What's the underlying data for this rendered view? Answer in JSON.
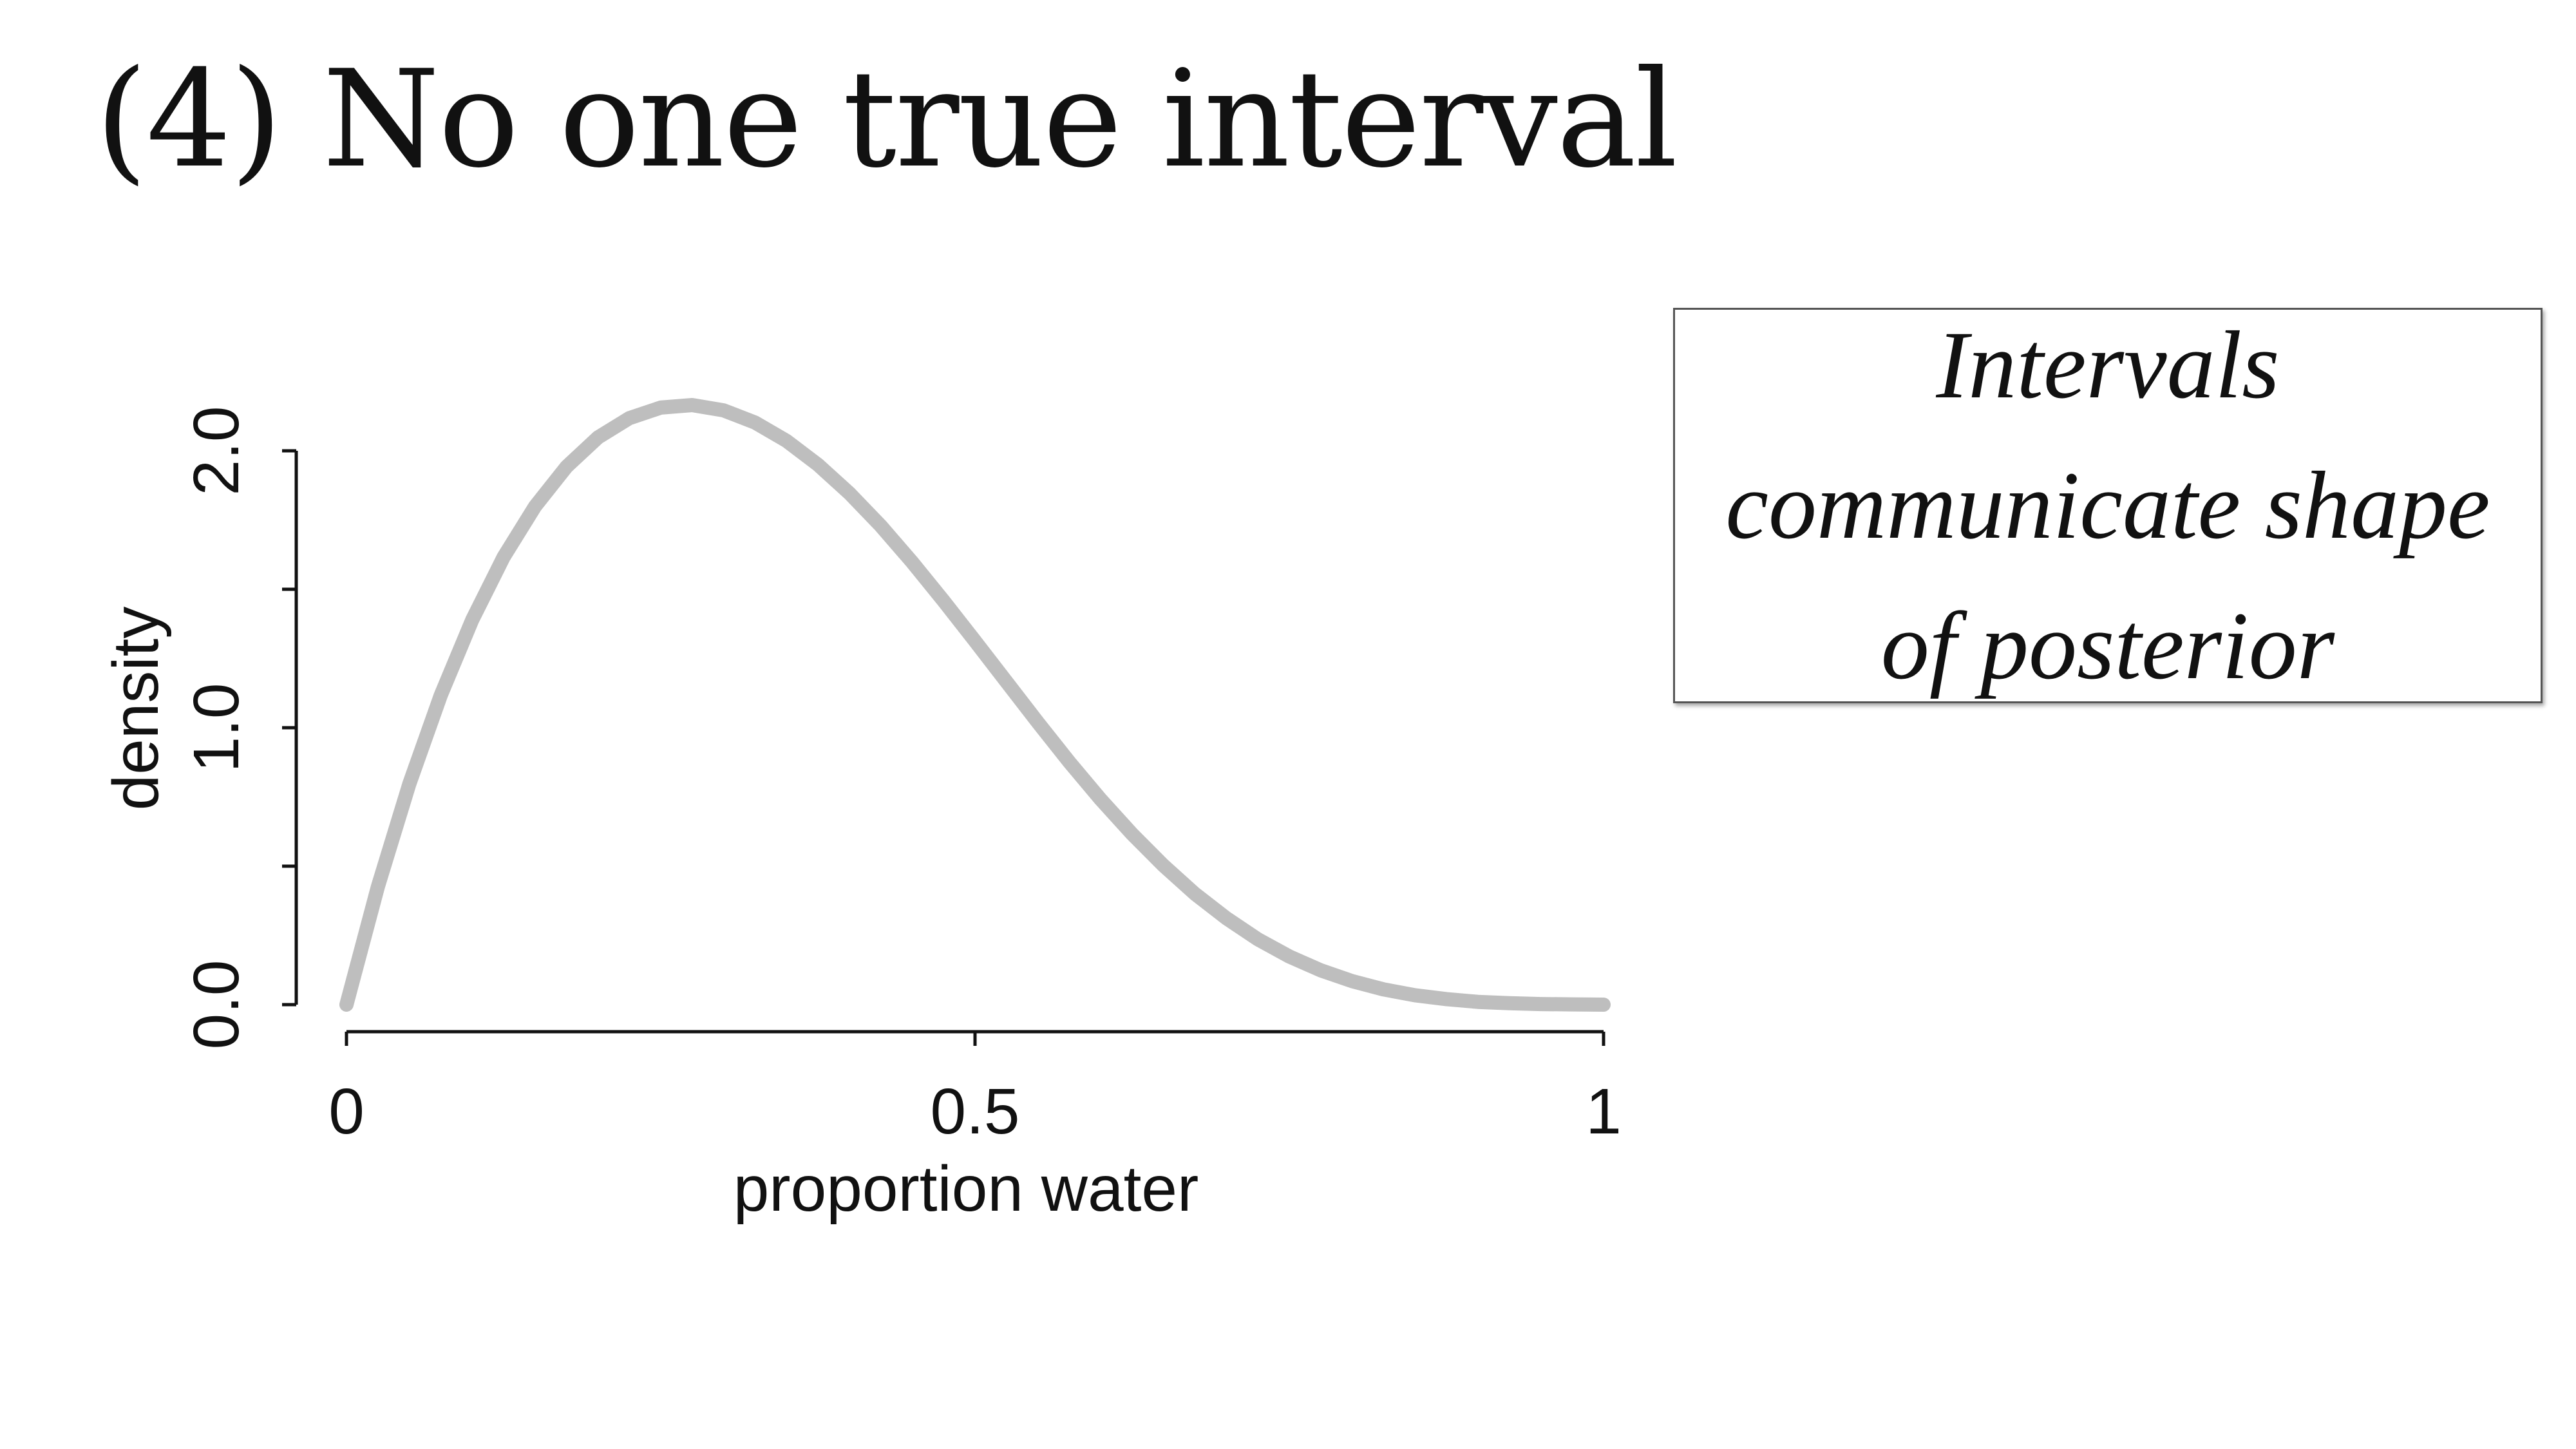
{
  "slide": {
    "title": "(4) No one true interval"
  },
  "note_box": {
    "lines": [
      "Intervals",
      "communicate shape",
      "of posterior"
    ]
  },
  "chart_data": {
    "type": "line",
    "xlabel": "proportion water",
    "ylabel": "density",
    "xlim": [
      0,
      1
    ],
    "ylim": [
      0,
      2.0
    ],
    "x_ticks": [
      {
        "value": 0,
        "label": "0"
      },
      {
        "value": 0.5,
        "label": "0.5"
      },
      {
        "value": 1,
        "label": "1"
      }
    ],
    "y_ticks": [
      {
        "value": 0.0,
        "label": "0.0"
      },
      {
        "value": 0.5,
        "label": ""
      },
      {
        "value": 1.0,
        "label": "1.0"
      },
      {
        "value": 1.5,
        "label": ""
      },
      {
        "value": 2.0,
        "label": "2.0"
      }
    ],
    "grid": false,
    "line_color": "#bebebe",
    "series": [
      {
        "x": [
          0,
          0.025,
          0.05,
          0.075,
          0.1,
          0.125,
          0.15,
          0.175,
          0.2,
          0.225,
          0.25,
          0.275,
          0.3,
          0.325,
          0.35,
          0.375,
          0.4,
          0.425,
          0.45,
          0.475,
          0.5,
          0.525,
          0.55,
          0.575,
          0.6,
          0.625,
          0.65,
          0.675,
          0.7,
          0.725,
          0.75,
          0.775,
          0.8,
          0.825,
          0.85,
          0.875,
          0.9,
          0.925,
          0.95,
          0.975,
          1
        ],
        "y": [
          0,
          0.426,
          0.797,
          1.117,
          1.389,
          1.616,
          1.799,
          1.942,
          2.048,
          2.118,
          2.156,
          2.165,
          2.146,
          2.102,
          2.036,
          1.95,
          1.847,
          1.729,
          1.598,
          1.458,
          1.313,
          1.166,
          1.019,
          0.876,
          0.741,
          0.616,
          0.502,
          0.4,
          0.312,
          0.236,
          0.174,
          0.124,
          0.085,
          0.055,
          0.034,
          0.02,
          0.01,
          0.005,
          0.002,
          0.001,
          0
        ]
      }
    ]
  }
}
